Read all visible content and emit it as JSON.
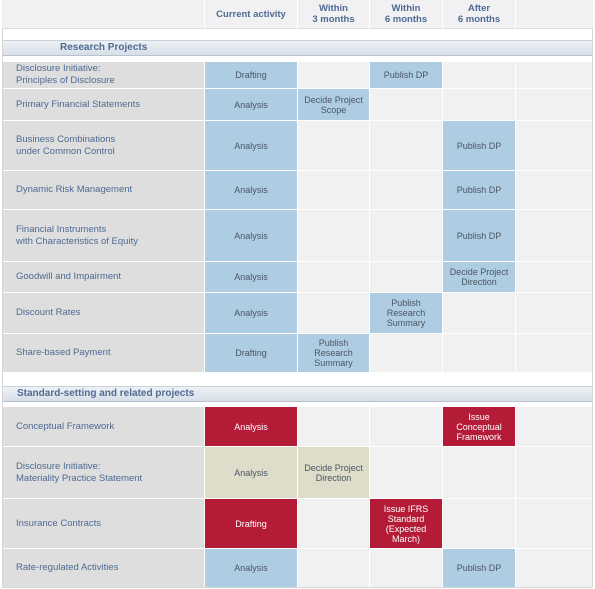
{
  "header": {
    "current": "Current activity",
    "within3": "Within\n3 months",
    "within6": "Within\n6 months",
    "after6": "After\n6 months"
  },
  "sections": {
    "research": "Research Projects",
    "standard": "Standard-setting and related projects"
  },
  "research_rows": [
    {
      "label": "Disclosure Initiative:\nPrinciples of Disclosure",
      "current": "Drafting",
      "within3": "",
      "within6": "Publish DP",
      "after6": ""
    },
    {
      "label": "Primary Financial Statements",
      "current": "Analysis",
      "within3": "Decide Project\nScope",
      "within6": "",
      "after6": ""
    },
    {
      "label": "Business Combinations\nunder Common Control",
      "current": "Analysis",
      "within3": "",
      "within6": "",
      "after6": "Publish DP"
    },
    {
      "label": "Dynamic Risk Management",
      "current": "Analysis",
      "within3": "",
      "within6": "",
      "after6": "Publish DP"
    },
    {
      "label": "Financial Instruments\nwith Characteristics of Equity",
      "current": "Analysis",
      "within3": "",
      "within6": "",
      "after6": "Publish DP"
    },
    {
      "label": "Goodwill and Impairment",
      "current": "Analysis",
      "within3": "",
      "within6": "",
      "after6": "Decide Project\nDirection"
    },
    {
      "label": "Discount Rates",
      "current": "Analysis",
      "within3": "",
      "within6": "Publish\nResearch\nSummary",
      "after6": ""
    },
    {
      "label": "Share-based Payment",
      "current": "Drafting",
      "within3": "Publish\nResearch\nSummary",
      "within6": "",
      "after6": ""
    }
  ],
  "standard_rows": [
    {
      "label": "Conceptual Framework",
      "current": "Analysis",
      "within3": "",
      "within6": "",
      "after6": "Issue\nConceptual\nFramework"
    },
    {
      "label": "Disclosure Initiative:\nMateriality Practice Statement",
      "current": "Analysis",
      "within3": "Decide Project\nDirection",
      "within6": "",
      "after6": ""
    },
    {
      "label": "Insurance Contracts",
      "current": "Drafting",
      "within3": "",
      "within6": "Issue IFRS\nStandard\n(Expected\nMarch)",
      "after6": ""
    },
    {
      "label": "Rate-regulated Activities",
      "current": "Analysis",
      "within3": "",
      "within6": "",
      "after6": "Publish DP"
    }
  ],
  "colors": {
    "blue": "#aecde2",
    "red": "#b31b36",
    "tan": "#deddc9",
    "label_bg": "#dedede",
    "empty_bg": "#f1f1f1",
    "text": "#4e6a92"
  }
}
